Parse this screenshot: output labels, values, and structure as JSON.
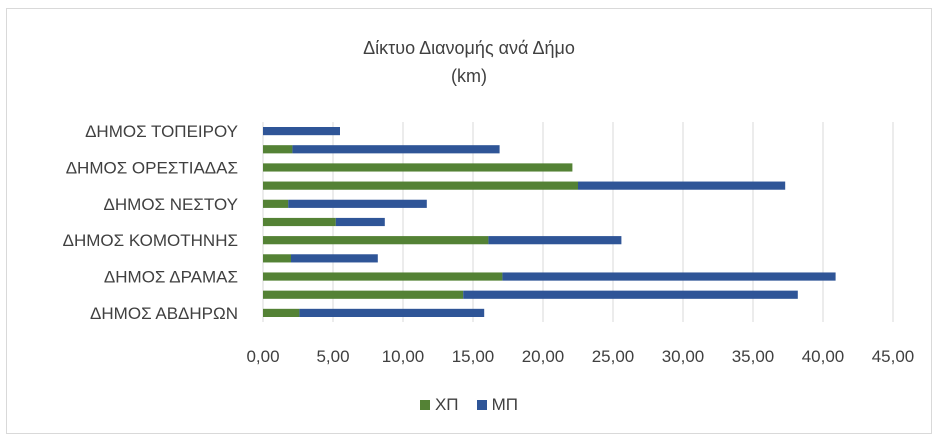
{
  "chart_data": {
    "type": "bar",
    "orientation": "horizontal",
    "stacked": true,
    "title": "Δίκτυο Διανομής ανά Δήμο",
    "subtitle": "(km)",
    "categories": [
      "ΔΗΜΟΣ ΑΒΔΗΡΩΝ",
      "",
      "ΔΗΜΟΣ ΔΡΑΜΑΣ",
      "",
      "ΔΗΜΟΣ ΚΟΜΟΤΗΝΗΣ",
      "",
      "ΔΗΜΟΣ ΝΕΣΤΟΥ",
      "",
      "ΔΗΜΟΣ ΟΡΕΣΤΙΑΔΑΣ",
      "",
      "ΔΗΜΟΣ ΤΟΠΕΙΡΟΥ"
    ],
    "series": [
      {
        "name": "ΧΠ",
        "color": "#548235",
        "values": [
          2.6,
          14.3,
          17.1,
          2.0,
          16.1,
          5.2,
          1.8,
          22.5,
          22.1,
          2.1,
          0
        ]
      },
      {
        "name": "ΜΠ",
        "color": "#2f5597",
        "values": [
          13.2,
          23.9,
          23.8,
          6.2,
          9.5,
          3.5,
          9.9,
          14.8,
          0,
          14.8,
          5.5
        ]
      }
    ],
    "xlim": [
      0,
      45
    ],
    "xticks": [
      "0,00",
      "5,00",
      "10,00",
      "15,00",
      "20,00",
      "25,00",
      "30,00",
      "35,00",
      "40,00",
      "45,00"
    ],
    "grid": true,
    "legend_position": "bottom"
  }
}
